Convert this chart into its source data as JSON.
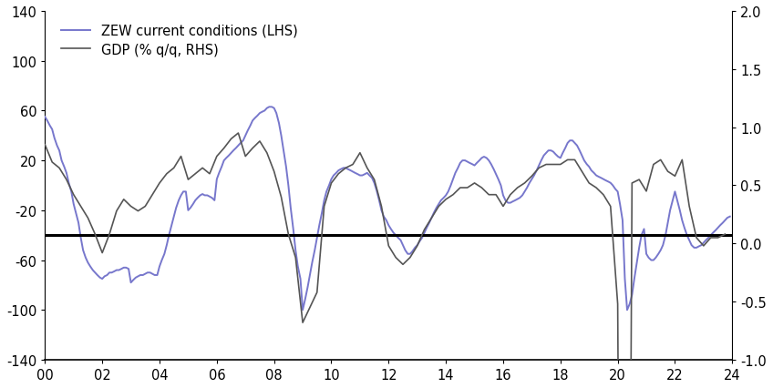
{
  "title": "",
  "xlim": [
    2000.0,
    2024.0
  ],
  "ylim_left": [
    -140,
    140
  ],
  "ylim_right": [
    -1.0,
    2.0
  ],
  "xticks": [
    2000,
    2002,
    2004,
    2006,
    2008,
    2010,
    2012,
    2014,
    2016,
    2018,
    2020,
    2022,
    2024
  ],
  "xticklabels": [
    "00",
    "02",
    "04",
    "06",
    "08",
    "10",
    "12",
    "14",
    "16",
    "18",
    "20",
    "22",
    "24"
  ],
  "yticks_left": [
    -140,
    -100,
    -60,
    -20,
    20,
    60,
    100,
    140
  ],
  "yticks_right": [
    -1.0,
    -0.5,
    0.0,
    0.5,
    1.0,
    1.5,
    2.0
  ],
  "hline_y_left": -40,
  "zew_color": "#7777cc",
  "gdp_color": "#555555",
  "hline_color": "#000000",
  "legend_zew": "ZEW current conditions (LHS)",
  "legend_gdp": "GDP (% q/q, RHS)",
  "zew_x": [
    2000.0,
    2000.08,
    2000.17,
    2000.25,
    2000.33,
    2000.42,
    2000.5,
    2000.58,
    2000.67,
    2000.75,
    2000.83,
    2000.92,
    2001.0,
    2001.08,
    2001.17,
    2001.25,
    2001.33,
    2001.42,
    2001.5,
    2001.58,
    2001.67,
    2001.75,
    2001.83,
    2001.92,
    2002.0,
    2002.08,
    2002.17,
    2002.25,
    2002.33,
    2002.42,
    2002.5,
    2002.58,
    2002.67,
    2002.75,
    2002.83,
    2002.92,
    2003.0,
    2003.08,
    2003.17,
    2003.25,
    2003.33,
    2003.42,
    2003.5,
    2003.58,
    2003.67,
    2003.75,
    2003.83,
    2003.92,
    2004.0,
    2004.08,
    2004.17,
    2004.25,
    2004.33,
    2004.42,
    2004.5,
    2004.58,
    2004.67,
    2004.75,
    2004.83,
    2004.92,
    2005.0,
    2005.08,
    2005.17,
    2005.25,
    2005.33,
    2005.42,
    2005.5,
    2005.58,
    2005.67,
    2005.75,
    2005.83,
    2005.92,
    2006.0,
    2006.08,
    2006.17,
    2006.25,
    2006.33,
    2006.42,
    2006.5,
    2006.58,
    2006.67,
    2006.75,
    2006.83,
    2006.92,
    2007.0,
    2007.08,
    2007.17,
    2007.25,
    2007.33,
    2007.42,
    2007.5,
    2007.58,
    2007.67,
    2007.75,
    2007.83,
    2007.92,
    2008.0,
    2008.08,
    2008.17,
    2008.25,
    2008.33,
    2008.42,
    2008.5,
    2008.58,
    2008.67,
    2008.75,
    2008.83,
    2008.92,
    2009.0,
    2009.08,
    2009.17,
    2009.25,
    2009.33,
    2009.42,
    2009.5,
    2009.58,
    2009.67,
    2009.75,
    2009.83,
    2009.92,
    2010.0,
    2010.08,
    2010.17,
    2010.25,
    2010.33,
    2010.42,
    2010.5,
    2010.58,
    2010.67,
    2010.75,
    2010.83,
    2010.92,
    2011.0,
    2011.08,
    2011.17,
    2011.25,
    2011.33,
    2011.42,
    2011.5,
    2011.58,
    2011.67,
    2011.75,
    2011.83,
    2011.92,
    2012.0,
    2012.08,
    2012.17,
    2012.25,
    2012.33,
    2012.42,
    2012.5,
    2012.58,
    2012.67,
    2012.75,
    2012.83,
    2012.92,
    2013.0,
    2013.08,
    2013.17,
    2013.25,
    2013.33,
    2013.42,
    2013.5,
    2013.58,
    2013.67,
    2013.75,
    2013.83,
    2013.92,
    2014.0,
    2014.08,
    2014.17,
    2014.25,
    2014.33,
    2014.42,
    2014.5,
    2014.58,
    2014.67,
    2014.75,
    2014.83,
    2014.92,
    2015.0,
    2015.08,
    2015.17,
    2015.25,
    2015.33,
    2015.42,
    2015.5,
    2015.58,
    2015.67,
    2015.75,
    2015.83,
    2015.92,
    2016.0,
    2016.08,
    2016.17,
    2016.25,
    2016.33,
    2016.42,
    2016.5,
    2016.58,
    2016.67,
    2016.75,
    2016.83,
    2016.92,
    2017.0,
    2017.08,
    2017.17,
    2017.25,
    2017.33,
    2017.42,
    2017.5,
    2017.58,
    2017.67,
    2017.75,
    2017.83,
    2017.92,
    2018.0,
    2018.08,
    2018.17,
    2018.25,
    2018.33,
    2018.42,
    2018.5,
    2018.58,
    2018.67,
    2018.75,
    2018.83,
    2018.92,
    2019.0,
    2019.08,
    2019.17,
    2019.25,
    2019.33,
    2019.42,
    2019.5,
    2019.58,
    2019.67,
    2019.75,
    2019.83,
    2019.92,
    2020.0,
    2020.08,
    2020.17,
    2020.25,
    2020.33,
    2020.42,
    2020.5,
    2020.58,
    2020.67,
    2020.75,
    2020.83,
    2020.92,
    2021.0,
    2021.08,
    2021.17,
    2021.25,
    2021.33,
    2021.42,
    2021.5,
    2021.58,
    2021.67,
    2021.75,
    2021.83,
    2021.92,
    2022.0,
    2022.08,
    2022.17,
    2022.25,
    2022.33,
    2022.42,
    2022.5,
    2022.58,
    2022.67,
    2022.75,
    2022.83,
    2022.92,
    2023.0,
    2023.08,
    2023.17,
    2023.25,
    2023.33,
    2023.42,
    2023.5,
    2023.58,
    2023.67,
    2023.75,
    2023.83,
    2023.92
  ],
  "zew_y": [
    55,
    52,
    48,
    45,
    38,
    32,
    28,
    20,
    15,
    10,
    2,
    -5,
    -15,
    -22,
    -30,
    -42,
    -52,
    -58,
    -62,
    -65,
    -68,
    -70,
    -72,
    -74,
    -75,
    -73,
    -72,
    -70,
    -70,
    -69,
    -68,
    -68,
    -67,
    -66,
    -66,
    -67,
    -78,
    -76,
    -74,
    -73,
    -72,
    -72,
    -71,
    -70,
    -70,
    -71,
    -72,
    -72,
    -65,
    -60,
    -55,
    -48,
    -40,
    -32,
    -25,
    -18,
    -12,
    -8,
    -5,
    -5,
    -20,
    -18,
    -15,
    -12,
    -10,
    -8,
    -7,
    -8,
    -8,
    -9,
    -10,
    -12,
    5,
    10,
    15,
    20,
    22,
    24,
    26,
    28,
    30,
    32,
    34,
    36,
    40,
    44,
    48,
    52,
    54,
    56,
    58,
    59,
    60,
    62,
    63,
    63,
    62,
    58,
    50,
    40,
    28,
    15,
    0,
    -18,
    -35,
    -52,
    -65,
    -75,
    -100,
    -92,
    -82,
    -72,
    -62,
    -52,
    -42,
    -32,
    -22,
    -12,
    -5,
    0,
    5,
    8,
    10,
    12,
    13,
    14,
    14,
    13,
    12,
    11,
    10,
    9,
    8,
    8,
    9,
    10,
    8,
    6,
    2,
    -4,
    -12,
    -20,
    -25,
    -28,
    -32,
    -35,
    -38,
    -40,
    -42,
    -44,
    -48,
    -52,
    -55,
    -55,
    -53,
    -50,
    -48,
    -45,
    -42,
    -38,
    -34,
    -30,
    -26,
    -22,
    -18,
    -15,
    -12,
    -10,
    -8,
    -5,
    0,
    5,
    10,
    14,
    18,
    20,
    20,
    19,
    18,
    17,
    16,
    18,
    20,
    22,
    23,
    22,
    20,
    17,
    13,
    9,
    5,
    0,
    -8,
    -12,
    -14,
    -14,
    -13,
    -12,
    -11,
    -10,
    -8,
    -5,
    -2,
    2,
    5,
    8,
    12,
    16,
    20,
    24,
    26,
    28,
    28,
    27,
    25,
    23,
    22,
    26,
    30,
    34,
    36,
    36,
    34,
    32,
    28,
    24,
    20,
    17,
    15,
    12,
    10,
    8,
    7,
    6,
    5,
    4,
    3,
    2,
    0,
    -3,
    -5,
    -15,
    -28,
    -75,
    -100,
    -95,
    -88,
    -75,
    -62,
    -50,
    -40,
    -35,
    -55,
    -58,
    -60,
    -60,
    -58,
    -55,
    -52,
    -48,
    -40,
    -30,
    -20,
    -12,
    -5,
    -12,
    -20,
    -28,
    -34,
    -40,
    -44,
    -48,
    -50,
    -50,
    -49,
    -48,
    -46,
    -44,
    -42,
    -40,
    -38,
    -36,
    -34,
    -32,
    -30,
    -28,
    -26,
    -25
  ],
  "gdp_x": [
    2000.0,
    2000.25,
    2000.5,
    2000.75,
    2001.0,
    2001.25,
    2001.5,
    2001.75,
    2002.0,
    2002.25,
    2002.5,
    2002.75,
    2003.0,
    2003.25,
    2003.5,
    2003.75,
    2004.0,
    2004.25,
    2004.5,
    2004.75,
    2005.0,
    2005.25,
    2005.5,
    2005.75,
    2006.0,
    2006.25,
    2006.5,
    2006.75,
    2007.0,
    2007.25,
    2007.5,
    2007.75,
    2008.0,
    2008.25,
    2008.5,
    2008.75,
    2009.0,
    2009.25,
    2009.5,
    2009.75,
    2010.0,
    2010.25,
    2010.5,
    2010.75,
    2011.0,
    2011.25,
    2011.5,
    2011.75,
    2012.0,
    2012.25,
    2012.5,
    2012.75,
    2013.0,
    2013.25,
    2013.5,
    2013.75,
    2014.0,
    2014.25,
    2014.5,
    2014.75,
    2015.0,
    2015.25,
    2015.5,
    2015.75,
    2016.0,
    2016.25,
    2016.5,
    2016.75,
    2017.0,
    2017.25,
    2017.5,
    2017.75,
    2018.0,
    2018.25,
    2018.5,
    2018.75,
    2019.0,
    2019.25,
    2019.5,
    2019.75,
    2020.0,
    2020.25,
    2020.5,
    2020.75,
    2021.0,
    2021.25,
    2021.5,
    2021.75,
    2022.0,
    2022.25,
    2022.5,
    2022.75,
    2023.0,
    2023.25,
    2023.5,
    2023.75
  ],
  "gdp_y": [
    0.85,
    0.7,
    0.65,
    0.55,
    0.42,
    0.32,
    0.22,
    0.08,
    -0.08,
    0.08,
    0.28,
    0.38,
    0.32,
    0.28,
    0.32,
    0.42,
    0.52,
    0.6,
    0.65,
    0.75,
    0.55,
    0.6,
    0.65,
    0.6,
    0.75,
    0.82,
    0.9,
    0.95,
    0.75,
    0.82,
    0.88,
    0.78,
    0.62,
    0.4,
    0.08,
    -0.12,
    -0.68,
    -0.55,
    -0.42,
    0.32,
    0.52,
    0.6,
    0.65,
    0.68,
    0.78,
    0.65,
    0.55,
    0.32,
    -0.02,
    -0.12,
    -0.18,
    -0.12,
    -0.02,
    0.12,
    0.22,
    0.32,
    0.38,
    0.42,
    0.48,
    0.48,
    0.52,
    0.48,
    0.42,
    0.42,
    0.32,
    0.42,
    0.48,
    0.52,
    0.58,
    0.65,
    0.68,
    0.68,
    0.68,
    0.72,
    0.72,
    0.62,
    0.52,
    0.48,
    0.42,
    0.32,
    -0.52,
    -11.0,
    0.52,
    0.55,
    0.45,
    0.68,
    0.72,
    0.62,
    0.58,
    0.72,
    0.32,
    0.05,
    -0.02,
    0.05,
    0.05,
    0.08
  ],
  "figsize": [
    8.48,
    4.27
  ],
  "dpi": 100,
  "background_color": "#ffffff",
  "spine_color": "#000000",
  "tick_color": "#000000",
  "label_fontsize": 10.5
}
